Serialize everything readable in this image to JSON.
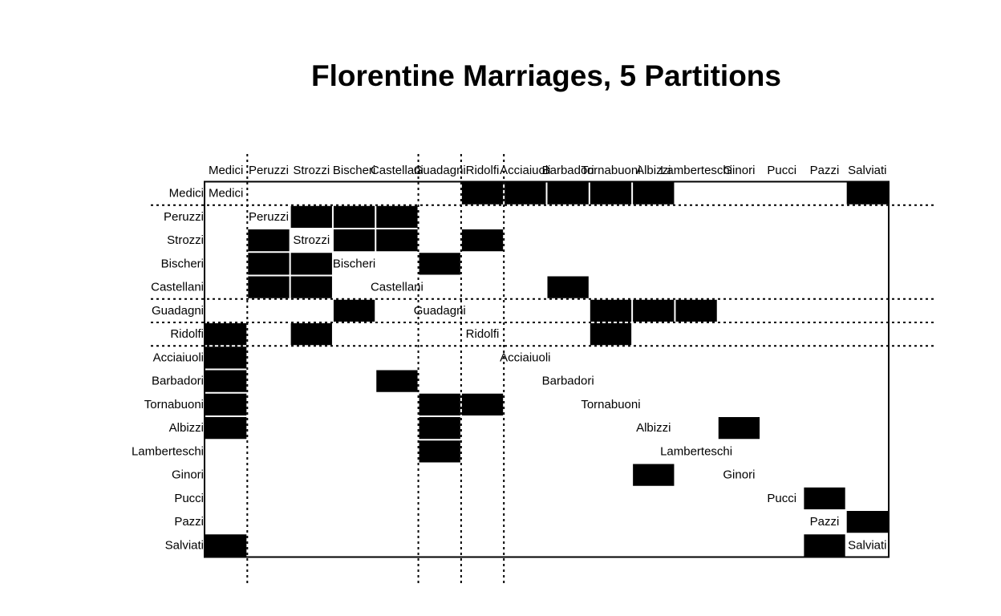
{
  "chart_data": {
    "type": "heatmap",
    "title": "Florentine Marriages, 5 Partitions",
    "xlabel": "",
    "ylabel": "",
    "labels": [
      "Medici",
      "Peruzzi",
      "Strozzi",
      "Bischeri",
      "Castellani",
      "Guadagni",
      "Ridolfi",
      "Acciaiuoli",
      "Barbadori",
      "Tornabuoni",
      "Albizzi",
      "Lamberteschi",
      "Ginori",
      "Pucci",
      "Pazzi",
      "Salviati"
    ],
    "cells": [
      {
        "row": "Medici",
        "col": "Ridolfi",
        "value": 1
      },
      {
        "row": "Medici",
        "col": "Acciaiuoli",
        "value": 1
      },
      {
        "row": "Medici",
        "col": "Barbadori",
        "value": 1
      },
      {
        "row": "Medici",
        "col": "Tornabuoni",
        "value": 1
      },
      {
        "row": "Medici",
        "col": "Albizzi",
        "value": 1
      },
      {
        "row": "Medici",
        "col": "Salviati",
        "value": 1
      },
      {
        "row": "Peruzzi",
        "col": "Strozzi",
        "value": 1
      },
      {
        "row": "Peruzzi",
        "col": "Bischeri",
        "value": 1
      },
      {
        "row": "Peruzzi",
        "col": "Castellani",
        "value": 1
      },
      {
        "row": "Strozzi",
        "col": "Peruzzi",
        "value": 1
      },
      {
        "row": "Strozzi",
        "col": "Bischeri",
        "value": 1
      },
      {
        "row": "Strozzi",
        "col": "Castellani",
        "value": 1
      },
      {
        "row": "Strozzi",
        "col": "Ridolfi",
        "value": 1
      },
      {
        "row": "Bischeri",
        "col": "Peruzzi",
        "value": 1
      },
      {
        "row": "Bischeri",
        "col": "Strozzi",
        "value": 1
      },
      {
        "row": "Bischeri",
        "col": "Guadagni",
        "value": 1
      },
      {
        "row": "Castellani",
        "col": "Peruzzi",
        "value": 1
      },
      {
        "row": "Castellani",
        "col": "Strozzi",
        "value": 1
      },
      {
        "row": "Castellani",
        "col": "Barbadori",
        "value": 1
      },
      {
        "row": "Guadagni",
        "col": "Bischeri",
        "value": 1
      },
      {
        "row": "Guadagni",
        "col": "Tornabuoni",
        "value": 1
      },
      {
        "row": "Guadagni",
        "col": "Albizzi",
        "value": 1
      },
      {
        "row": "Guadagni",
        "col": "Lamberteschi",
        "value": 1
      },
      {
        "row": "Ridolfi",
        "col": "Medici",
        "value": 1
      },
      {
        "row": "Ridolfi",
        "col": "Strozzi",
        "value": 1
      },
      {
        "row": "Ridolfi",
        "col": "Tornabuoni",
        "value": 1
      },
      {
        "row": "Acciaiuoli",
        "col": "Medici",
        "value": 1
      },
      {
        "row": "Barbadori",
        "col": "Medici",
        "value": 1
      },
      {
        "row": "Barbadori",
        "col": "Castellani",
        "value": 1
      },
      {
        "row": "Tornabuoni",
        "col": "Medici",
        "value": 1
      },
      {
        "row": "Tornabuoni",
        "col": "Guadagni",
        "value": 1
      },
      {
        "row": "Tornabuoni",
        "col": "Ridolfi",
        "value": 1
      },
      {
        "row": "Albizzi",
        "col": "Medici",
        "value": 1
      },
      {
        "row": "Albizzi",
        "col": "Guadagni",
        "value": 1
      },
      {
        "row": "Albizzi",
        "col": "Ginori",
        "value": 1
      },
      {
        "row": "Lamberteschi",
        "col": "Guadagni",
        "value": 1
      },
      {
        "row": "Ginori",
        "col": "Albizzi",
        "value": 1
      },
      {
        "row": "Pucci",
        "col": "Pazzi",
        "value": 1
      },
      {
        "row": "Pazzi",
        "col": "Salviati",
        "value": 1
      },
      {
        "row": "Salviati",
        "col": "Medici",
        "value": 1
      },
      {
        "row": "Salviati",
        "col": "Pazzi",
        "value": 1
      }
    ],
    "partition_breaks_after": [
      "Medici",
      "Castellani",
      "Guadagni",
      "Ridolfi"
    ],
    "vertical_partition_breaks_after": [
      "Medici",
      "Castellani",
      "Guadagni",
      "Ridolfi"
    ],
    "colors": {
      "filled": "#000000",
      "empty": "#ffffff",
      "lines": "#000000"
    }
  }
}
